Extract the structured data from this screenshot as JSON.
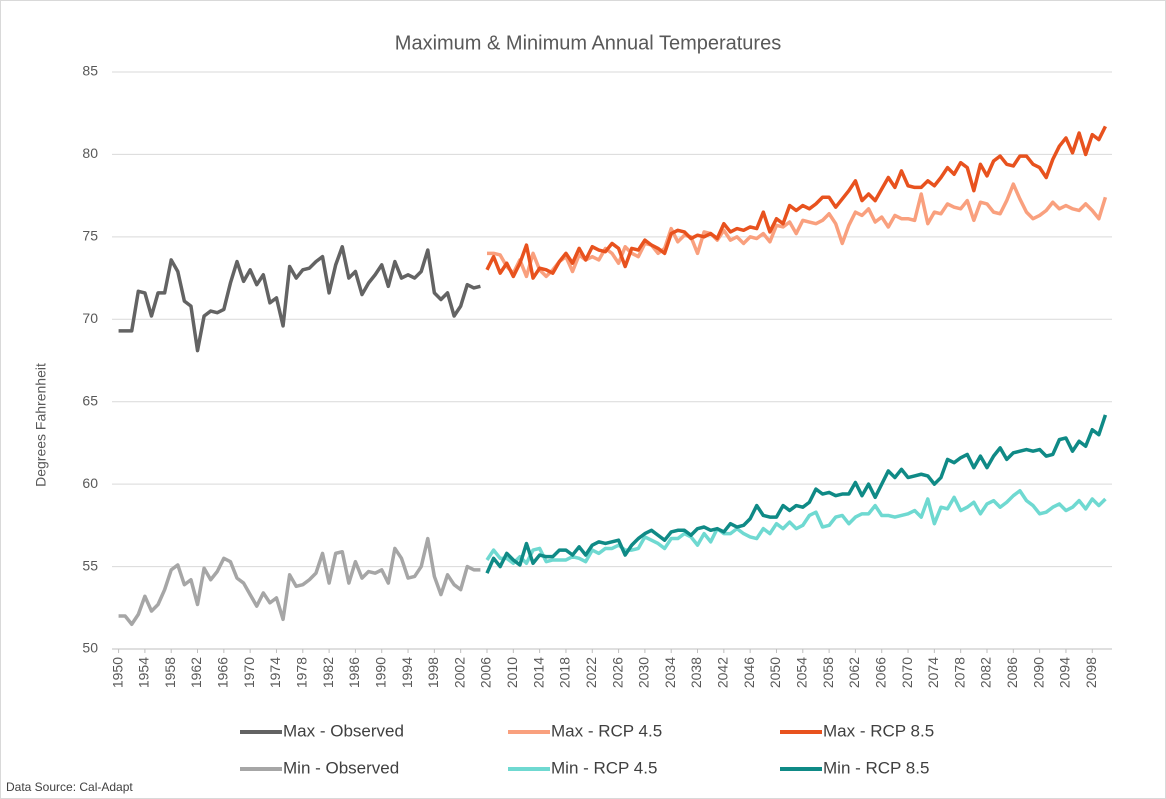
{
  "chart_data": {
    "type": "line",
    "title": "Maximum & Minimum Annual Temperatures",
    "y_label": "Degrees Fahrenheit",
    "source": "Data Source: Cal-Adapt",
    "x": [
      1950,
      1951,
      1952,
      1953,
      1954,
      1955,
      1956,
      1957,
      1958,
      1959,
      1960,
      1961,
      1962,
      1963,
      1964,
      1965,
      1966,
      1967,
      1968,
      1969,
      1970,
      1971,
      1972,
      1973,
      1974,
      1975,
      1976,
      1977,
      1978,
      1979,
      1980,
      1981,
      1982,
      1983,
      1984,
      1985,
      1986,
      1987,
      1988,
      1989,
      1990,
      1991,
      1992,
      1993,
      1994,
      1995,
      1996,
      1997,
      1998,
      1999,
      2000,
      2001,
      2002,
      2003,
      2004,
      2005,
      2006,
      2007,
      2008,
      2009,
      2010,
      2011,
      2012,
      2013,
      2014,
      2015,
      2016,
      2017,
      2018,
      2019,
      2020,
      2021,
      2022,
      2023,
      2024,
      2025,
      2026,
      2027,
      2028,
      2029,
      2030,
      2031,
      2032,
      2033,
      2034,
      2035,
      2036,
      2037,
      2038,
      2039,
      2040,
      2041,
      2042,
      2043,
      2044,
      2045,
      2046,
      2047,
      2048,
      2049,
      2050,
      2051,
      2052,
      2053,
      2054,
      2055,
      2056,
      2057,
      2058,
      2059,
      2060,
      2061,
      2062,
      2063,
      2064,
      2065,
      2066,
      2067,
      2068,
      2069,
      2070,
      2071,
      2072,
      2073,
      2074,
      2075,
      2076,
      2077,
      2078,
      2079,
      2080,
      2081,
      2082,
      2083,
      2084,
      2085,
      2086,
      2087,
      2088,
      2089,
      2090,
      2091,
      2092,
      2093,
      2094,
      2095,
      2096,
      2097,
      2098,
      2099,
      2100
    ],
    "xlim": [
      1949,
      2101
    ],
    "xticks": [
      1950,
      1954,
      1958,
      1962,
      1966,
      1970,
      1974,
      1978,
      1982,
      1986,
      1990,
      1994,
      1998,
      2002,
      2006,
      2010,
      2014,
      2018,
      2022,
      2026,
      2030,
      2034,
      2038,
      2042,
      2046,
      2050,
      2054,
      2058,
      2062,
      2066,
      2070,
      2074,
      2078,
      2082,
      2086,
      2090,
      2094,
      2098
    ],
    "ylim": [
      50,
      85
    ],
    "yticks": [
      50,
      55,
      60,
      65,
      70,
      75,
      80,
      85
    ],
    "grid": true,
    "series": [
      {
        "name": "Max - Observed",
        "color": "#636363",
        "values": [
          69.3,
          69.3,
          69.3,
          71.7,
          71.6,
          70.2,
          71.6,
          71.6,
          73.6,
          72.9,
          71.1,
          70.8,
          68.1,
          70.2,
          70.5,
          70.4,
          70.6,
          72.2,
          73.5,
          72.3,
          73.0,
          72.1,
          72.7,
          71.0,
          71.3,
          69.6,
          73.2,
          72.5,
          73.0,
          73.1,
          73.5,
          73.8,
          71.6,
          73.3,
          74.4,
          72.5,
          72.9,
          71.5,
          72.2,
          72.7,
          73.3,
          72.0,
          73.5,
          72.5,
          72.7,
          72.5,
          72.9,
          74.2,
          71.6,
          71.2,
          71.6,
          70.2,
          70.8,
          72.1,
          71.9,
          72.0,
          null,
          null,
          null,
          null,
          null,
          null,
          null,
          null,
          null,
          null,
          null,
          null,
          null,
          null,
          null,
          null,
          null,
          null,
          null,
          null,
          null,
          null,
          null,
          null,
          null,
          null,
          null,
          null,
          null,
          null,
          null,
          null,
          null,
          null,
          null,
          null,
          null,
          null,
          null,
          null,
          null,
          null,
          null,
          null,
          null,
          null,
          null,
          null,
          null,
          null,
          null,
          null,
          null,
          null,
          null,
          null,
          null,
          null,
          null,
          null,
          null,
          null,
          null,
          null,
          null,
          null,
          null,
          null,
          null,
          null,
          null,
          null,
          null,
          null,
          null,
          null,
          null,
          null,
          null,
          null,
          null,
          null,
          null,
          null,
          null,
          null,
          null,
          null,
          null,
          null,
          null,
          null,
          null,
          null,
          null
        ]
      },
      {
        "name": "Max - RCP 4.5",
        "color": "#f9a07e",
        "values": [
          null,
          null,
          null,
          null,
          null,
          null,
          null,
          null,
          null,
          null,
          null,
          null,
          null,
          null,
          null,
          null,
          null,
          null,
          null,
          null,
          null,
          null,
          null,
          null,
          null,
          null,
          null,
          null,
          null,
          null,
          null,
          null,
          null,
          null,
          null,
          null,
          null,
          null,
          null,
          null,
          null,
          null,
          null,
          null,
          null,
          null,
          null,
          null,
          null,
          null,
          null,
          null,
          null,
          null,
          null,
          null,
          74.0,
          74.0,
          73.9,
          73.2,
          72.8,
          73.6,
          72.6,
          74.0,
          73.0,
          72.6,
          73.0,
          73.5,
          73.8,
          72.9,
          73.9,
          73.6,
          73.8,
          73.6,
          74.3,
          74.0,
          73.4,
          74.4,
          74.0,
          73.8,
          74.6,
          74.5,
          74.0,
          74.3,
          75.5,
          74.7,
          75.1,
          75.0,
          74.0,
          75.3,
          75.2,
          74.8,
          75.4,
          74.8,
          75.0,
          74.6,
          75.0,
          74.9,
          75.2,
          74.7,
          75.7,
          75.6,
          75.9,
          75.2,
          76.0,
          75.9,
          75.8,
          76.0,
          76.4,
          75.8,
          74.6,
          75.7,
          76.5,
          76.3,
          76.7,
          75.9,
          76.2,
          75.6,
          76.3,
          76.1,
          76.1,
          76.0,
          77.6,
          75.8,
          76.5,
          76.4,
          77.0,
          76.8,
          76.7,
          77.2,
          76.0,
          77.1,
          77.0,
          76.5,
          76.4,
          77.2,
          78.2,
          77.3,
          76.5,
          76.1,
          76.3,
          76.6,
          77.1,
          76.7,
          76.9,
          76.7,
          76.6,
          77.0,
          76.6,
          76.1,
          77.4
        ]
      },
      {
        "name": "Max - RCP 8.5",
        "color": "#e8521e",
        "values": [
          null,
          null,
          null,
          null,
          null,
          null,
          null,
          null,
          null,
          null,
          null,
          null,
          null,
          null,
          null,
          null,
          null,
          null,
          null,
          null,
          null,
          null,
          null,
          null,
          null,
          null,
          null,
          null,
          null,
          null,
          null,
          null,
          null,
          null,
          null,
          null,
          null,
          null,
          null,
          null,
          null,
          null,
          null,
          null,
          null,
          null,
          null,
          null,
          null,
          null,
          null,
          null,
          null,
          null,
          null,
          null,
          73.0,
          73.8,
          72.8,
          73.4,
          72.6,
          73.4,
          74.5,
          72.5,
          73.1,
          73.0,
          72.8,
          73.5,
          74.0,
          73.4,
          74.3,
          73.6,
          74.4,
          74.2,
          74.1,
          74.6,
          74.3,
          73.2,
          74.3,
          74.2,
          74.8,
          74.5,
          74.3,
          74.0,
          75.2,
          75.4,
          75.3,
          74.9,
          75.1,
          75.0,
          75.2,
          74.9,
          75.8,
          75.3,
          75.5,
          75.4,
          75.6,
          75.5,
          76.5,
          75.3,
          76.1,
          75.8,
          76.9,
          76.6,
          76.9,
          76.7,
          77.0,
          77.4,
          77.4,
          76.8,
          77.3,
          77.8,
          78.4,
          77.2,
          77.6,
          77.2,
          77.9,
          78.6,
          78.0,
          79.0,
          78.1,
          78.0,
          78.0,
          78.4,
          78.1,
          78.6,
          79.2,
          78.8,
          79.5,
          79.2,
          77.8,
          79.4,
          78.7,
          79.6,
          79.9,
          79.4,
          79.3,
          79.9,
          79.9,
          79.4,
          79.2,
          78.6,
          79.7,
          80.5,
          81.0,
          80.1,
          81.3,
          80.0,
          81.2,
          80.9,
          81.7
        ]
      },
      {
        "name": "Min - Observed",
        "color": "#a6a6a6",
        "values": [
          52.0,
          52.0,
          51.5,
          52.1,
          53.2,
          52.3,
          52.7,
          53.6,
          54.8,
          55.1,
          53.9,
          54.2,
          52.7,
          54.9,
          54.2,
          54.7,
          55.5,
          55.3,
          54.3,
          54.0,
          53.3,
          52.6,
          53.4,
          52.8,
          53.1,
          51.8,
          54.5,
          53.8,
          53.9,
          54.2,
          54.6,
          55.8,
          54.0,
          55.8,
          55.9,
          54.0,
          55.3,
          54.3,
          54.7,
          54.6,
          54.8,
          54.0,
          56.1,
          55.5,
          54.3,
          54.4,
          55.0,
          56.7,
          54.4,
          53.3,
          54.5,
          53.9,
          53.6,
          55.0,
          54.8,
          54.8,
          null,
          null,
          null,
          null,
          null,
          null,
          null,
          null,
          null,
          null,
          null,
          null,
          null,
          null,
          null,
          null,
          null,
          null,
          null,
          null,
          null,
          null,
          null,
          null,
          null,
          null,
          null,
          null,
          null,
          null,
          null,
          null,
          null,
          null,
          null,
          null,
          null,
          null,
          null,
          null,
          null,
          null,
          null,
          null,
          null,
          null,
          null,
          null,
          null,
          null,
          null,
          null,
          null,
          null,
          null,
          null,
          null,
          null,
          null,
          null,
          null,
          null,
          null,
          null,
          null,
          null,
          null,
          null,
          null,
          null,
          null,
          null,
          null,
          null,
          null,
          null,
          null,
          null,
          null,
          null,
          null,
          null,
          null,
          null,
          null,
          null,
          null,
          null,
          null,
          null,
          null,
          null,
          null,
          null,
          null
        ]
      },
      {
        "name": "Min - RCP 4.5",
        "color": "#6fd9d1",
        "values": [
          null,
          null,
          null,
          null,
          null,
          null,
          null,
          null,
          null,
          null,
          null,
          null,
          null,
          null,
          null,
          null,
          null,
          null,
          null,
          null,
          null,
          null,
          null,
          null,
          null,
          null,
          null,
          null,
          null,
          null,
          null,
          null,
          null,
          null,
          null,
          null,
          null,
          null,
          null,
          null,
          null,
          null,
          null,
          null,
          null,
          null,
          null,
          null,
          null,
          null,
          null,
          null,
          null,
          null,
          null,
          null,
          55.4,
          56.0,
          55.5,
          55.5,
          55.2,
          55.6,
          55.2,
          56.0,
          56.1,
          55.3,
          55.4,
          55.4,
          55.4,
          55.6,
          55.5,
          55.3,
          56.0,
          55.8,
          56.1,
          56.1,
          56.3,
          56.0,
          56.0,
          56.1,
          56.8,
          56.6,
          56.4,
          56.1,
          56.7,
          56.7,
          57.0,
          56.8,
          56.3,
          57.0,
          56.5,
          57.3,
          57.0,
          57.0,
          57.3,
          57.0,
          56.8,
          56.7,
          57.3,
          57.0,
          57.6,
          57.3,
          57.7,
          57.3,
          57.5,
          58.1,
          58.3,
          57.4,
          57.5,
          58.0,
          58.1,
          57.6,
          58.0,
          58.2,
          58.2,
          58.7,
          58.1,
          58.1,
          58.0,
          58.1,
          58.2,
          58.4,
          58.0,
          59.1,
          57.6,
          58.6,
          58.5,
          59.2,
          58.4,
          58.6,
          58.9,
          58.2,
          58.8,
          59.0,
          58.6,
          58.9,
          59.3,
          59.6,
          59.0,
          58.7,
          58.2,
          58.3,
          58.6,
          58.8,
          58.4,
          58.6,
          59.0,
          58.5,
          59.1,
          58.7,
          59.1
        ]
      },
      {
        "name": "Min - RCP 8.5",
        "color": "#0f8a86",
        "values": [
          null,
          null,
          null,
          null,
          null,
          null,
          null,
          null,
          null,
          null,
          null,
          null,
          null,
          null,
          null,
          null,
          null,
          null,
          null,
          null,
          null,
          null,
          null,
          null,
          null,
          null,
          null,
          null,
          null,
          null,
          null,
          null,
          null,
          null,
          null,
          null,
          null,
          null,
          null,
          null,
          null,
          null,
          null,
          null,
          null,
          null,
          null,
          null,
          null,
          null,
          null,
          null,
          null,
          null,
          null,
          null,
          54.6,
          55.5,
          55.0,
          55.8,
          55.4,
          55.1,
          56.4,
          55.2,
          55.7,
          55.6,
          55.6,
          56.0,
          56.0,
          55.7,
          56.2,
          55.7,
          56.3,
          56.5,
          56.4,
          56.5,
          56.6,
          55.7,
          56.3,
          56.7,
          57.0,
          57.2,
          56.9,
          56.6,
          57.1,
          57.2,
          57.2,
          56.9,
          57.3,
          57.4,
          57.2,
          57.3,
          57.1,
          57.6,
          57.4,
          57.5,
          57.9,
          58.7,
          58.1,
          58.0,
          58.0,
          58.7,
          58.4,
          58.7,
          58.6,
          58.9,
          59.7,
          59.4,
          59.5,
          59.3,
          59.4,
          59.4,
          60.1,
          59.3,
          60.0,
          59.2,
          60.0,
          60.8,
          60.4,
          60.9,
          60.4,
          60.5,
          60.6,
          60.5,
          60.0,
          60.4,
          61.5,
          61.3,
          61.6,
          61.8,
          61.0,
          61.7,
          61.0,
          61.7,
          62.2,
          61.5,
          61.9,
          62.0,
          62.1,
          62.0,
          62.1,
          61.7,
          61.8,
          62.7,
          62.8,
          62.0,
          62.6,
          62.3,
          63.3,
          63.0,
          64.2
        ]
      }
    ]
  }
}
